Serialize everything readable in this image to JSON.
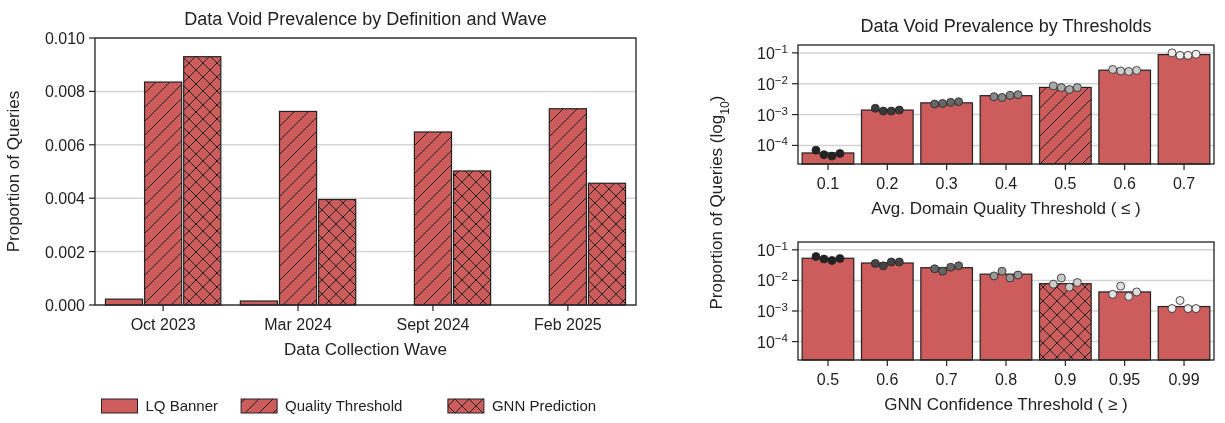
{
  "chart_data": [
    {
      "type": "bar",
      "title": "Data Void Prevalence by Definition and Wave",
      "xlabel": "Data Collection Wave",
      "ylabel": "Proportion of Queries",
      "categories": [
        "Oct 2023",
        "Mar 2024",
        "Sept 2024",
        "Feb 2025"
      ],
      "series": [
        {
          "name": "LQ Banner",
          "color": "#cd5c5c",
          "values": [
            0.00022,
            0.00015,
            null,
            null
          ]
        },
        {
          "name": "Quality Threshold",
          "color": "#cd5c5c",
          "values": [
            0.00835,
            0.00725,
            0.00648,
            0.00735
          ]
        },
        {
          "name": "GNN Prediction",
          "color": "#cd5c5c",
          "values": [
            0.0093,
            0.00395,
            0.00502,
            0.00456
          ]
        }
      ],
      "ylim": [
        0,
        0.01
      ],
      "yticks": [
        {
          "value": 0,
          "label": "0.000"
        },
        {
          "value": 0.002,
          "label": "0.002"
        },
        {
          "value": 0.004,
          "label": "0.004"
        },
        {
          "value": 0.006,
          "label": "0.006"
        },
        {
          "value": 0.008,
          "label": "0.008"
        },
        {
          "value": 0.01,
          "label": "0.010"
        }
      ],
      "grid": "y",
      "legend": "bottom"
    },
    {
      "type": "bar",
      "title": "Data Void Prevalence by Thresholds",
      "xlabel": "Avg. Domain Quality Threshold ( ≤ )",
      "ylabel": "Proportion of Queries (log$_{10}$)",
      "categories": [
        "0.1",
        "0.2",
        "0.3",
        "0.4",
        "0.5",
        "0.6",
        "0.7"
      ],
      "series": [
        {
          "type": "bar",
          "color": "#cd5c5c",
          "values": [
            5.7e-05,
            0.0014,
            0.0024,
            0.0041,
            0.0076,
            0.0275,
            0.088
          ]
        },
        {
          "type": "scatter",
          "x": [
            "0.1",
            "0.1",
            "0.1",
            "0.1",
            "0.2",
            "0.2",
            "0.2",
            "0.2",
            "0.3",
            "0.3",
            "0.3",
            "0.3",
            "0.4",
            "0.4",
            "0.4",
            "0.4",
            "0.5",
            "0.5",
            "0.5",
            "0.5",
            "0.6",
            "0.6",
            "0.6",
            "0.6",
            "0.7",
            "0.7",
            "0.7",
            "0.7"
          ],
          "values": [
            7e-05,
            5e-05,
            4.5e-05,
            5.5e-05,
            0.0016,
            0.0013,
            0.0013,
            0.0014,
            0.0022,
            0.0023,
            0.0025,
            0.0026,
            0.0038,
            0.0036,
            0.0042,
            0.0044,
            0.0085,
            0.0075,
            0.0065,
            0.0075,
            0.029,
            0.026,
            0.025,
            0.027,
            0.1,
            0.083,
            0.083,
            0.09
          ],
          "colors": [
            "#222222",
            "#222222",
            "#222222",
            "#222222",
            "#3a3a3a",
            "#3a3a3a",
            "#3a3a3a",
            "#3a3a3a",
            "#666666",
            "#666666",
            "#666666",
            "#666666",
            "#888888",
            "#888888",
            "#888888",
            "#888888",
            "#aaaaaa",
            "#aaaaaa",
            "#aaaaaa",
            "#aaaaaa",
            "#cccccc",
            "#cccccc",
            "#cccccc",
            "#cccccc",
            "#eeeeee",
            "#eeeeee",
            "#eeeeee",
            "#eeeeee"
          ]
        }
      ],
      "log": "y",
      "ylim": [
        2.5e-05,
        0.18
      ],
      "yticks": [
        {
          "value": 0.0001,
          "label": "10$^{−4}$"
        },
        {
          "value": 0.001,
          "label": "10$^{−3}$"
        },
        {
          "value": 0.01,
          "label": "10$^{−2}$"
        },
        {
          "value": 0.1,
          "label": "10$^{−1}$"
        }
      ],
      "grid": "y",
      "marker": "circle"
    },
    {
      "type": "bar",
      "xlabel": "GNN Confidence Threshold ( ≥ )",
      "categories": [
        "0.5",
        "0.6",
        "0.7",
        "0.8",
        "0.9",
        "0.95",
        "0.99"
      ],
      "series": [
        {
          "type": "bar",
          "color": "#cd5c5c",
          "values": [
            0.053,
            0.037,
            0.026,
            0.016,
            0.0078,
            0.0042,
            0.0014
          ]
        },
        {
          "type": "scatter",
          "x": [
            "0.5",
            "0.5",
            "0.5",
            "0.5",
            "0.6",
            "0.6",
            "0.6",
            "0.6",
            "0.7",
            "0.7",
            "0.7",
            "0.7",
            "0.8",
            "0.8",
            "0.8",
            "0.8",
            "0.9",
            "0.9",
            "0.9",
            "0.9",
            "0.95",
            "0.95",
            "0.95",
            "0.95",
            "0.99",
            "0.99",
            "0.99",
            "0.99"
          ],
          "values": [
            0.06,
            0.05,
            0.045,
            0.052,
            0.036,
            0.03,
            0.04,
            0.04,
            0.024,
            0.02,
            0.027,
            0.03,
            0.014,
            0.02,
            0.012,
            0.015,
            0.0075,
            0.012,
            0.006,
            0.0085,
            0.0035,
            0.0065,
            0.003,
            0.0042,
            0.0012,
            0.0022,
            0.0012,
            0.0012
          ],
          "colors": [
            "#222222",
            "#222222",
            "#222222",
            "#222222",
            "#444444",
            "#444444",
            "#444444",
            "#444444",
            "#666666",
            "#666666",
            "#666666",
            "#666666",
            "#999999",
            "#999999",
            "#999999",
            "#999999",
            "#cccccc",
            "#cccccc",
            "#cccccc",
            "#cccccc",
            "#e0e0e0",
            "#e0e0e0",
            "#e0e0e0",
            "#e0e0e0",
            "#eeeeee",
            "#eeeeee",
            "#eeeeee",
            "#eeeeee"
          ]
        }
      ],
      "log": "y",
      "ylim": [
        2.5e-05,
        0.18
      ],
      "yticks": [
        {
          "value": 0.0001,
          "label": "10$^{−4}$"
        },
        {
          "value": 0.001,
          "label": "10$^{−3}$"
        },
        {
          "value": 0.01,
          "label": "10$^{−2}$"
        },
        {
          "value": 0.1,
          "label": "10$^{−1}$"
        }
      ],
      "grid": "y",
      "marker": "circle"
    }
  ]
}
